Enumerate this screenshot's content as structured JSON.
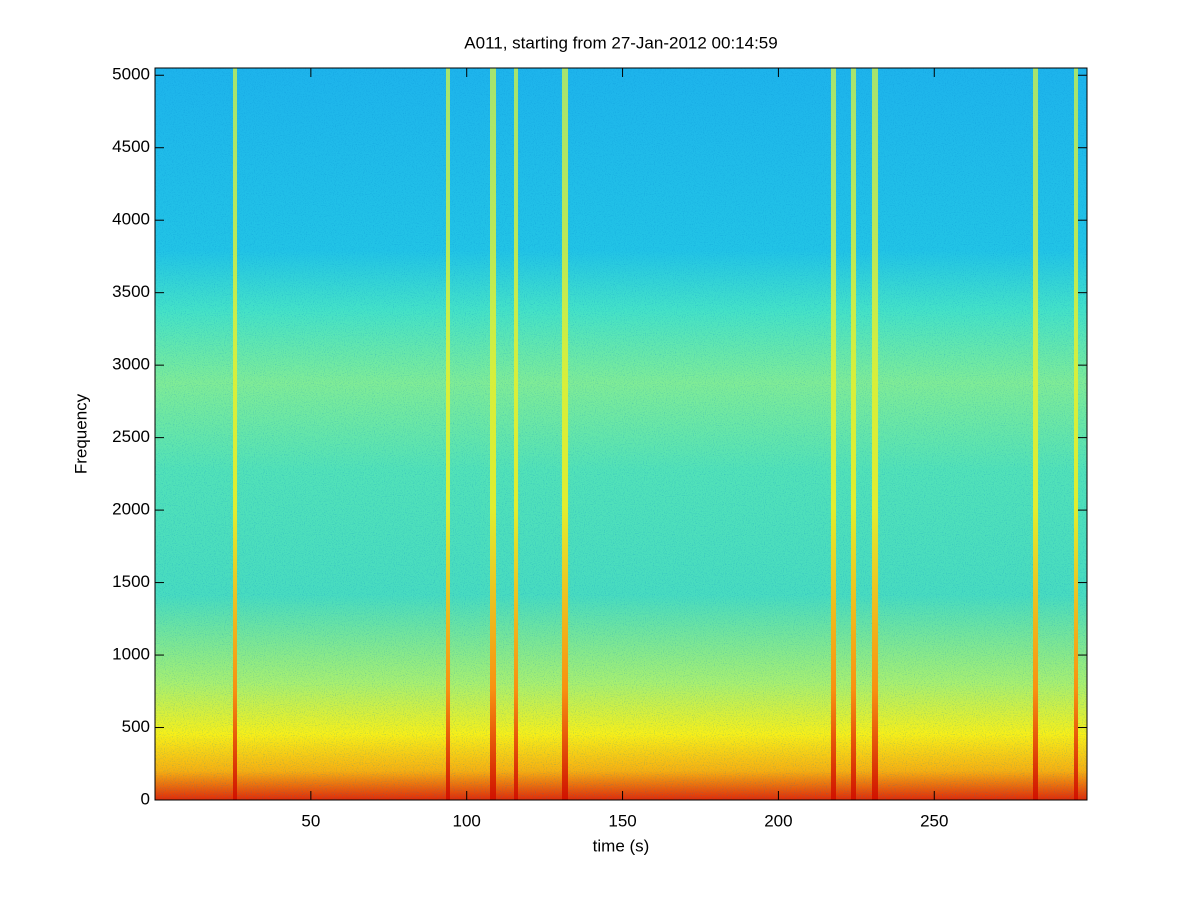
{
  "chart_data": {
    "type": "spectrogram",
    "title": "A011, starting from 27-Jan-2012 00:14:59",
    "xlabel": "time (s)",
    "ylabel": "Frequency",
    "xlim": [
      0,
      299
    ],
    "ylim": [
      0,
      5050
    ],
    "xticks": [
      50,
      100,
      150,
      200,
      250
    ],
    "yticks": [
      0,
      500,
      1000,
      1500,
      2000,
      2500,
      3000,
      3500,
      4000,
      4500,
      5000
    ]
  }
}
